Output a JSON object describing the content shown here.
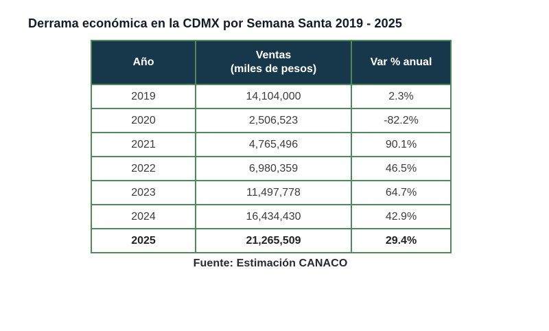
{
  "title": "Derrama económica en la CDMX por Semana Santa 2019 - 2025",
  "colors": {
    "header_bg": "#17384a",
    "header_text": "#ffffff",
    "border_green": "#4e8a59",
    "body_text": "#3b3b3b",
    "title_text": "#121b26"
  },
  "table": {
    "header": {
      "col_year": "Año",
      "col_sales_line1": "Ventas",
      "col_sales_line2": "(miles de pesos)",
      "col_var": "Var % anual"
    },
    "rows": [
      {
        "year": "2019",
        "ventas": "14,104,000",
        "var": "2.3%"
      },
      {
        "year": "2020",
        "ventas": "2,506,523",
        "var": "-82.2%"
      },
      {
        "year": "2021",
        "ventas": "4,765,496",
        "var": "90.1%"
      },
      {
        "year": "2022",
        "ventas": "6,980,359",
        "var": "46.5%"
      },
      {
        "year": "2023",
        "ventas": "11,497,778",
        "var": "64.7%"
      },
      {
        "year": "2024",
        "ventas": "16,434,430",
        "var": "42.9%"
      },
      {
        "year": "2025",
        "ventas": "21,265,509",
        "var": "29.4%"
      }
    ]
  },
  "source": "Fuente: Estimación CANACO",
  "chart_data": {
    "type": "table",
    "title": "Derrama económica en la CDMX por Semana Santa 2019 - 2025",
    "columns": [
      "Año",
      "Ventas (miles de pesos)",
      "Var % anual"
    ],
    "rows": [
      [
        2019,
        14104000,
        2.3
      ],
      [
        2020,
        2506523,
        -82.2
      ],
      [
        2021,
        4765496,
        90.1
      ],
      [
        2022,
        6980359,
        46.5
      ],
      [
        2023,
        11497778,
        64.7
      ],
      [
        2024,
        16434430,
        42.9
      ],
      [
        2025,
        21265509,
        29.4
      ]
    ],
    "highlighted_row": 2025,
    "source": "Fuente: Estimación CANACO"
  }
}
